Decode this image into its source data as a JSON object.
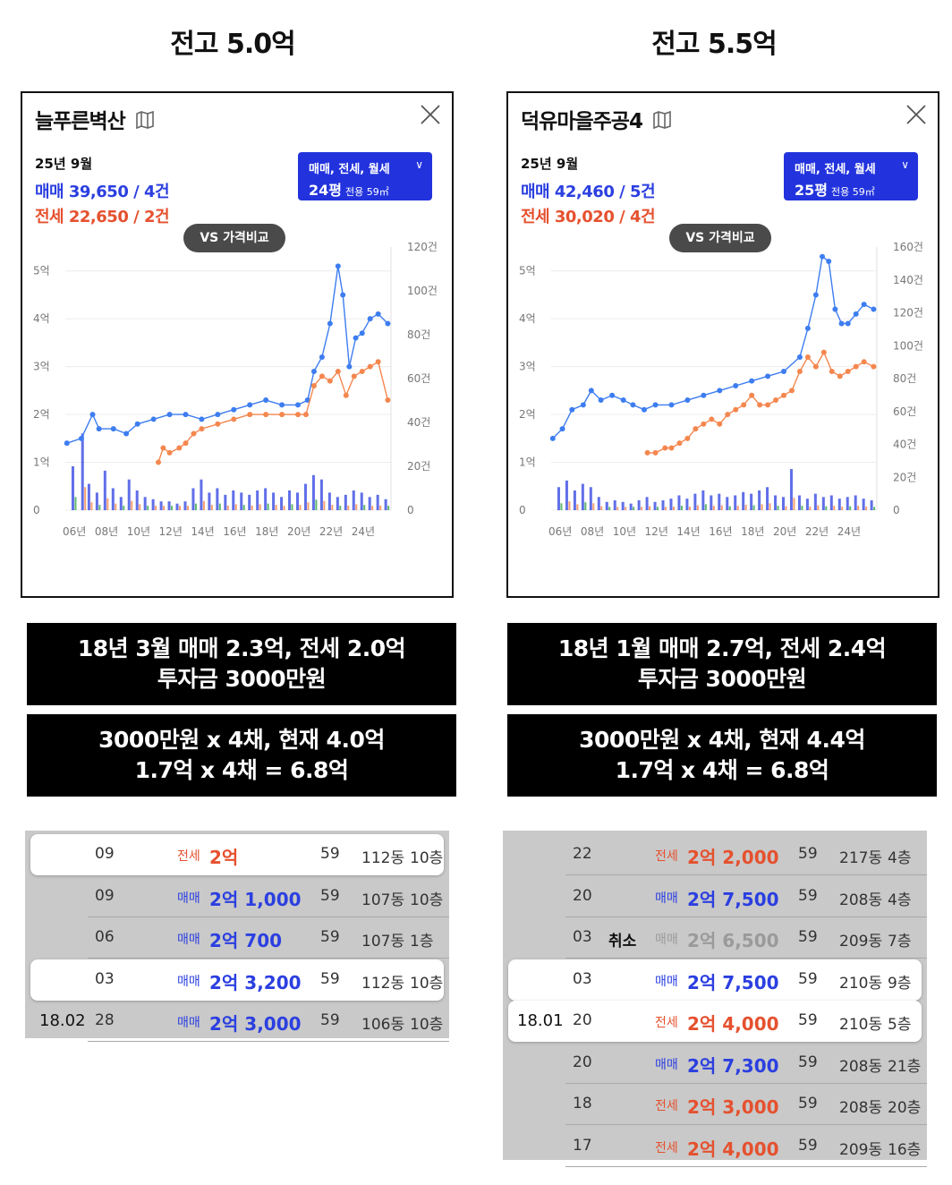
{
  "columns": [
    {
      "heading": "전고 5.0억",
      "card": {
        "title": "늘푸른벽산",
        "period": "25년 9월",
        "sale": "매매 39,650 / 4건",
        "jeonse": "전세 22,650 / 2건",
        "filter_types": "매매, 전세, 월세",
        "filter_size": "24평",
        "filter_area": "전용 59㎡",
        "vs_label": "VS 가격비교"
      },
      "box1": [
        "18년 3월 매매 2.3억, 전세 2.0억",
        "투자금 3000만원"
      ],
      "box2": [
        "3000만원 x 4채, 현재 4.0억",
        "1.7억 x 4채 = 6.8억"
      ],
      "transactions": [
        {
          "group": "",
          "day": "09",
          "note": "",
          "type": "전세",
          "price": "2억",
          "area": "59",
          "dong": "112동",
          "floor": "10층",
          "highlight": true
        },
        {
          "group": "",
          "day": "09",
          "note": "",
          "type": "매매",
          "price": "2억 1,000",
          "area": "59",
          "dong": "107동",
          "floor": "10층",
          "highlight": false
        },
        {
          "group": "",
          "day": "06",
          "note": "",
          "type": "매매",
          "price": "2억 700",
          "area": "59",
          "dong": "107동",
          "floor": "1층",
          "highlight": false
        },
        {
          "group": "",
          "day": "03",
          "note": "",
          "type": "매매",
          "price": "2억 3,200",
          "area": "59",
          "dong": "112동",
          "floor": "10층",
          "highlight": true
        },
        {
          "group": "18.02",
          "day": "28",
          "note": "",
          "type": "매매",
          "price": "2억 3,000",
          "area": "59",
          "dong": "106동",
          "floor": "10층",
          "highlight": false
        }
      ]
    },
    {
      "heading": "전고 5.5억",
      "card": {
        "title": "덕유마을주공4",
        "period": "25년 9월",
        "sale": "매매 42,460 / 5건",
        "jeonse": "전세 30,020 / 4건",
        "filter_types": "매매, 전세, 월세",
        "filter_size": "25평",
        "filter_area": "전용 59㎡",
        "vs_label": "VS 가격비교"
      },
      "box1": [
        "18년 1월 매매 2.7억, 전세 2.4억",
        "투자금 3000만원"
      ],
      "box2": [
        "3000만원 x 4채, 현재 4.4억",
        "1.7억 x 4채 = 6.8억"
      ],
      "transactions": [
        {
          "group": "",
          "day": "22",
          "note": "",
          "type": "전세",
          "price": "2억 2,000",
          "area": "59",
          "dong": "217동",
          "floor": "4층",
          "highlight": false
        },
        {
          "group": "",
          "day": "20",
          "note": "",
          "type": "매매",
          "price": "2억 7,500",
          "area": "59",
          "dong": "208동",
          "floor": "4층",
          "highlight": false
        },
        {
          "group": "",
          "day": "03",
          "note": "취소",
          "type": "매매",
          "price": "2억 6,500",
          "area": "59",
          "dong": "209동",
          "floor": "7층",
          "highlight": false
        },
        {
          "group": "",
          "day": "03",
          "note": "",
          "type": "매매",
          "price": "2억 7,500",
          "area": "59",
          "dong": "210동",
          "floor": "9층",
          "highlight": true
        },
        {
          "group": "18.01",
          "day": "20",
          "note": "",
          "type": "전세",
          "price": "2억 4,000",
          "area": "59",
          "dong": "210동",
          "floor": "5층",
          "highlight": true
        },
        {
          "group": "",
          "day": "20",
          "note": "",
          "type": "매매",
          "price": "2억 7,300",
          "area": "59",
          "dong": "208동",
          "floor": "21층",
          "highlight": false
        },
        {
          "group": "",
          "day": "18",
          "note": "",
          "type": "전세",
          "price": "2억 3,000",
          "area": "59",
          "dong": "208동",
          "floor": "20층",
          "highlight": false
        },
        {
          "group": "",
          "day": "17",
          "note": "",
          "type": "전세",
          "price": "2억 4,000",
          "area": "59",
          "dong": "209동",
          "floor": "16층",
          "highlight": false
        }
      ]
    }
  ],
  "colors": {
    "sale": "#2b3fe0",
    "sale_line": "#3d7df0",
    "jeonse": "#e5512f",
    "jeonse_line": "#f4874f",
    "volume_green": "#3aa84a"
  },
  "chart_data": [
    {
      "type": "line",
      "x_ticks": [
        "06년",
        "08년",
        "10년",
        "12년",
        "14년",
        "16년",
        "18년",
        "20년",
        "22년",
        "24년"
      ],
      "y_left_ticks": [
        "0",
        "1억",
        "2억",
        "3억",
        "4억",
        "5억"
      ],
      "y_right_ticks": [
        "0",
        "20건",
        "40건",
        "60건",
        "80건",
        "100건",
        "120건"
      ],
      "ylim_price": [
        0,
        5.5
      ],
      "ylim_volume": [
        0,
        120
      ],
      "xlim": [
        2005.5,
        2025.8
      ],
      "series": [
        {
          "name": "매매",
          "points": [
            [
              2005.6,
              1.4
            ],
            [
              2006.5,
              1.5
            ],
            [
              2007.2,
              2.0
            ],
            [
              2007.6,
              1.7
            ],
            [
              2008.5,
              1.7
            ],
            [
              2009.3,
              1.6
            ],
            [
              2010.0,
              1.8
            ],
            [
              2011.0,
              1.9
            ],
            [
              2012.0,
              2.0
            ],
            [
              2013.0,
              2.0
            ],
            [
              2014.0,
              1.9
            ],
            [
              2015.0,
              2.0
            ],
            [
              2016.0,
              2.1
            ],
            [
              2017.0,
              2.2
            ],
            [
              2018.0,
              2.3
            ],
            [
              2019.0,
              2.2
            ],
            [
              2020.0,
              2.2
            ],
            [
              2020.6,
              2.3
            ],
            [
              2021.0,
              2.9
            ],
            [
              2021.5,
              3.2
            ],
            [
              2022.0,
              3.9
            ],
            [
              2022.5,
              5.1
            ],
            [
              2022.8,
              4.5
            ],
            [
              2023.2,
              3.0
            ],
            [
              2023.6,
              3.6
            ],
            [
              2024.0,
              3.7
            ],
            [
              2024.5,
              4.0
            ],
            [
              2025.0,
              4.1
            ],
            [
              2025.6,
              3.9
            ]
          ]
        },
        {
          "name": "전세",
          "points": [
            [
              2011.3,
              1.0
            ],
            [
              2011.6,
              1.3
            ],
            [
              2012.0,
              1.2
            ],
            [
              2012.6,
              1.3
            ],
            [
              2013.0,
              1.4
            ],
            [
              2013.5,
              1.6
            ],
            [
              2014.0,
              1.7
            ],
            [
              2015.0,
              1.8
            ],
            [
              2016.0,
              1.9
            ],
            [
              2017.0,
              2.0
            ],
            [
              2018.0,
              2.0
            ],
            [
              2019.0,
              2.0
            ],
            [
              2020.0,
              2.0
            ],
            [
              2020.5,
              2.0
            ],
            [
              2021.0,
              2.6
            ],
            [
              2021.5,
              2.8
            ],
            [
              2022.0,
              2.7
            ],
            [
              2022.5,
              2.9
            ],
            [
              2023.0,
              2.4
            ],
            [
              2023.5,
              2.8
            ],
            [
              2024.0,
              2.9
            ],
            [
              2024.5,
              3.0
            ],
            [
              2025.0,
              3.1
            ],
            [
              2025.6,
              2.3
            ]
          ]
        }
      ],
      "volume": [
        [
          2006.0,
          20
        ],
        [
          2006.6,
          35
        ],
        [
          2007.0,
          12
        ],
        [
          2007.5,
          8
        ],
        [
          2008.0,
          18
        ],
        [
          2008.5,
          10
        ],
        [
          2009.0,
          6
        ],
        [
          2009.5,
          14
        ],
        [
          2010.0,
          9
        ],
        [
          2010.5,
          6
        ],
        [
          2011.0,
          5
        ],
        [
          2011.5,
          4
        ],
        [
          2012.0,
          4
        ],
        [
          2012.5,
          3
        ],
        [
          2013.0,
          4
        ],
        [
          2013.5,
          10
        ],
        [
          2014.0,
          14
        ],
        [
          2014.5,
          8
        ],
        [
          2015.0,
          10
        ],
        [
          2015.5,
          7
        ],
        [
          2016.0,
          9
        ],
        [
          2016.5,
          8
        ],
        [
          2017.0,
          7
        ],
        [
          2017.5,
          9
        ],
        [
          2018.0,
          10
        ],
        [
          2018.5,
          8
        ],
        [
          2019.0,
          6
        ],
        [
          2019.5,
          9
        ],
        [
          2020.0,
          8
        ],
        [
          2020.5,
          12
        ],
        [
          2021.0,
          16
        ],
        [
          2021.5,
          14
        ],
        [
          2022.0,
          8
        ],
        [
          2022.5,
          6
        ],
        [
          2023.0,
          7
        ],
        [
          2023.5,
          9
        ],
        [
          2024.0,
          8
        ],
        [
          2024.5,
          6
        ],
        [
          2025.0,
          7
        ],
        [
          2025.5,
          5
        ]
      ]
    },
    {
      "type": "line",
      "x_ticks": [
        "06년",
        "08년",
        "10년",
        "12년",
        "14년",
        "16년",
        "18년",
        "20년",
        "22년",
        "24년"
      ],
      "y_left_ticks": [
        "0",
        "1억",
        "2억",
        "3억",
        "4억",
        "5억"
      ],
      "y_right_ticks": [
        "0",
        "20건",
        "40건",
        "60건",
        "80건",
        "100건",
        "120건",
        "140건",
        "160건"
      ],
      "ylim_price": [
        0,
        5.5
      ],
      "ylim_volume": [
        0,
        160
      ],
      "xlim": [
        2005.5,
        2025.8
      ],
      "series": [
        {
          "name": "매매",
          "points": [
            [
              2005.6,
              1.5
            ],
            [
              2006.2,
              1.7
            ],
            [
              2006.8,
              2.1
            ],
            [
              2007.5,
              2.2
            ],
            [
              2008.0,
              2.5
            ],
            [
              2008.6,
              2.3
            ],
            [
              2009.3,
              2.4
            ],
            [
              2010.0,
              2.3
            ],
            [
              2010.6,
              2.2
            ],
            [
              2011.3,
              2.1
            ],
            [
              2012.0,
              2.2
            ],
            [
              2013.0,
              2.2
            ],
            [
              2014.0,
              2.3
            ],
            [
              2015.0,
              2.4
            ],
            [
              2016.0,
              2.5
            ],
            [
              2017.0,
              2.6
            ],
            [
              2018.0,
              2.7
            ],
            [
              2019.0,
              2.8
            ],
            [
              2020.0,
              2.9
            ],
            [
              2021.0,
              3.2
            ],
            [
              2021.5,
              3.8
            ],
            [
              2022.0,
              4.5
            ],
            [
              2022.4,
              5.3
            ],
            [
              2022.8,
              5.2
            ],
            [
              2023.2,
              4.2
            ],
            [
              2023.6,
              3.9
            ],
            [
              2024.0,
              3.9
            ],
            [
              2024.5,
              4.1
            ],
            [
              2025.0,
              4.3
            ],
            [
              2025.6,
              4.2
            ]
          ]
        },
        {
          "name": "전세",
          "points": [
            [
              2011.5,
              1.2
            ],
            [
              2012.0,
              1.2
            ],
            [
              2012.6,
              1.3
            ],
            [
              2013.0,
              1.3
            ],
            [
              2013.5,
              1.4
            ],
            [
              2014.0,
              1.5
            ],
            [
              2014.5,
              1.7
            ],
            [
              2015.0,
              1.8
            ],
            [
              2015.5,
              1.9
            ],
            [
              2016.0,
              1.8
            ],
            [
              2016.5,
              2.0
            ],
            [
              2017.0,
              2.1
            ],
            [
              2017.5,
              2.2
            ],
            [
              2018.0,
              2.4
            ],
            [
              2018.5,
              2.2
            ],
            [
              2019.0,
              2.2
            ],
            [
              2019.5,
              2.3
            ],
            [
              2020.0,
              2.4
            ],
            [
              2020.5,
              2.5
            ],
            [
              2021.0,
              2.9
            ],
            [
              2021.5,
              3.2
            ],
            [
              2022.0,
              3.0
            ],
            [
              2022.5,
              3.3
            ],
            [
              2023.0,
              2.9
            ],
            [
              2023.5,
              2.8
            ],
            [
              2024.0,
              2.9
            ],
            [
              2024.5,
              3.0
            ],
            [
              2025.0,
              3.1
            ],
            [
              2025.6,
              3.0
            ]
          ]
        }
      ],
      "volume": [
        [
          2006.0,
          14
        ],
        [
          2006.5,
          18
        ],
        [
          2007.0,
          12
        ],
        [
          2007.5,
          16
        ],
        [
          2008.0,
          14
        ],
        [
          2008.5,
          8
        ],
        [
          2009.0,
          5
        ],
        [
          2009.5,
          6
        ],
        [
          2010.0,
          5
        ],
        [
          2010.5,
          4
        ],
        [
          2011.0,
          6
        ],
        [
          2011.5,
          8
        ],
        [
          2012.0,
          5
        ],
        [
          2012.5,
          6
        ],
        [
          2013.0,
          7
        ],
        [
          2013.5,
          9
        ],
        [
          2014.0,
          7
        ],
        [
          2014.5,
          10
        ],
        [
          2015.0,
          12
        ],
        [
          2015.5,
          9
        ],
        [
          2016.0,
          10
        ],
        [
          2016.5,
          8
        ],
        [
          2017.0,
          9
        ],
        [
          2017.5,
          11
        ],
        [
          2018.0,
          10
        ],
        [
          2018.5,
          12
        ],
        [
          2019.0,
          14
        ],
        [
          2019.5,
          9
        ],
        [
          2020.0,
          8
        ],
        [
          2020.5,
          25
        ],
        [
          2021.0,
          9
        ],
        [
          2021.5,
          7
        ],
        [
          2022.0,
          10
        ],
        [
          2022.5,
          8
        ],
        [
          2023.0,
          9
        ],
        [
          2023.5,
          7
        ],
        [
          2024.0,
          8
        ],
        [
          2024.5,
          9
        ],
        [
          2025.0,
          7
        ],
        [
          2025.5,
          6
        ]
      ]
    }
  ]
}
